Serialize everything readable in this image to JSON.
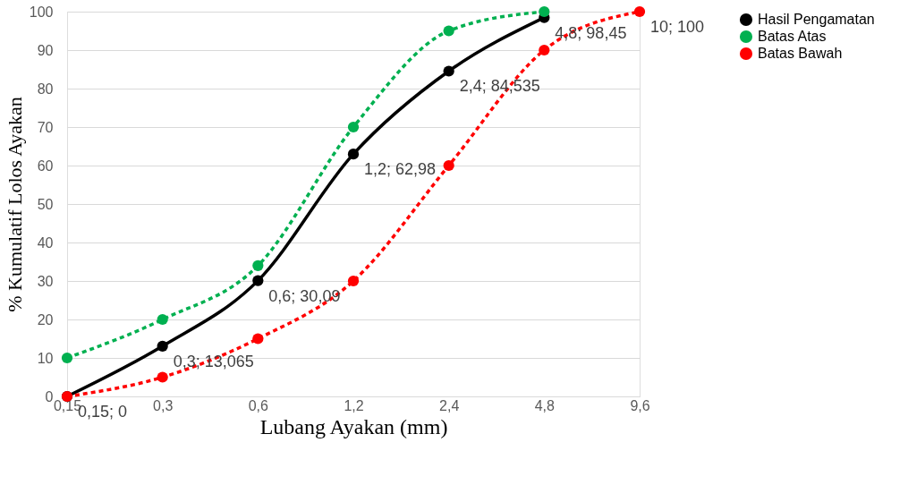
{
  "chart_data": {
    "type": "line",
    "xlabel": "Lubang Ayakan (mm)",
    "ylabel": "% Kumulatif Lolos Ayakan",
    "categories": [
      "0,15",
      "0,3",
      "0,6",
      "1,2",
      "2,4",
      "4,8",
      "9,6"
    ],
    "ylim": [
      0,
      100
    ],
    "yticks": [
      0,
      10,
      20,
      30,
      40,
      50,
      60,
      70,
      80,
      90,
      100
    ],
    "grid": "y",
    "legend": "right",
    "marker": "circle",
    "series": [
      {
        "name": "Hasil Pengamatan",
        "color": "#000000",
        "line_style": "solid",
        "values": [
          0,
          13.065,
          30.09,
          62.98,
          84.535,
          98.45,
          null
        ],
        "value_labels": [
          "0,15; 0",
          "0,3; 13,065",
          "0,6; 30,09",
          "1,2; 62,98",
          "2,4; 84,535",
          "4,8; 98,45",
          null
        ]
      },
      {
        "name": "Batas Atas",
        "color": "#00b050",
        "line_style": "dashed",
        "values": [
          10,
          20,
          34,
          70,
          95,
          100,
          null
        ]
      },
      {
        "name": "Batas Bawah",
        "color": "#ff0000",
        "line_style": "dashed",
        "values": [
          0,
          5,
          15,
          30,
          60,
          90,
          100
        ],
        "value_labels": [
          null,
          null,
          null,
          null,
          null,
          null,
          "10; 100"
        ]
      }
    ]
  }
}
